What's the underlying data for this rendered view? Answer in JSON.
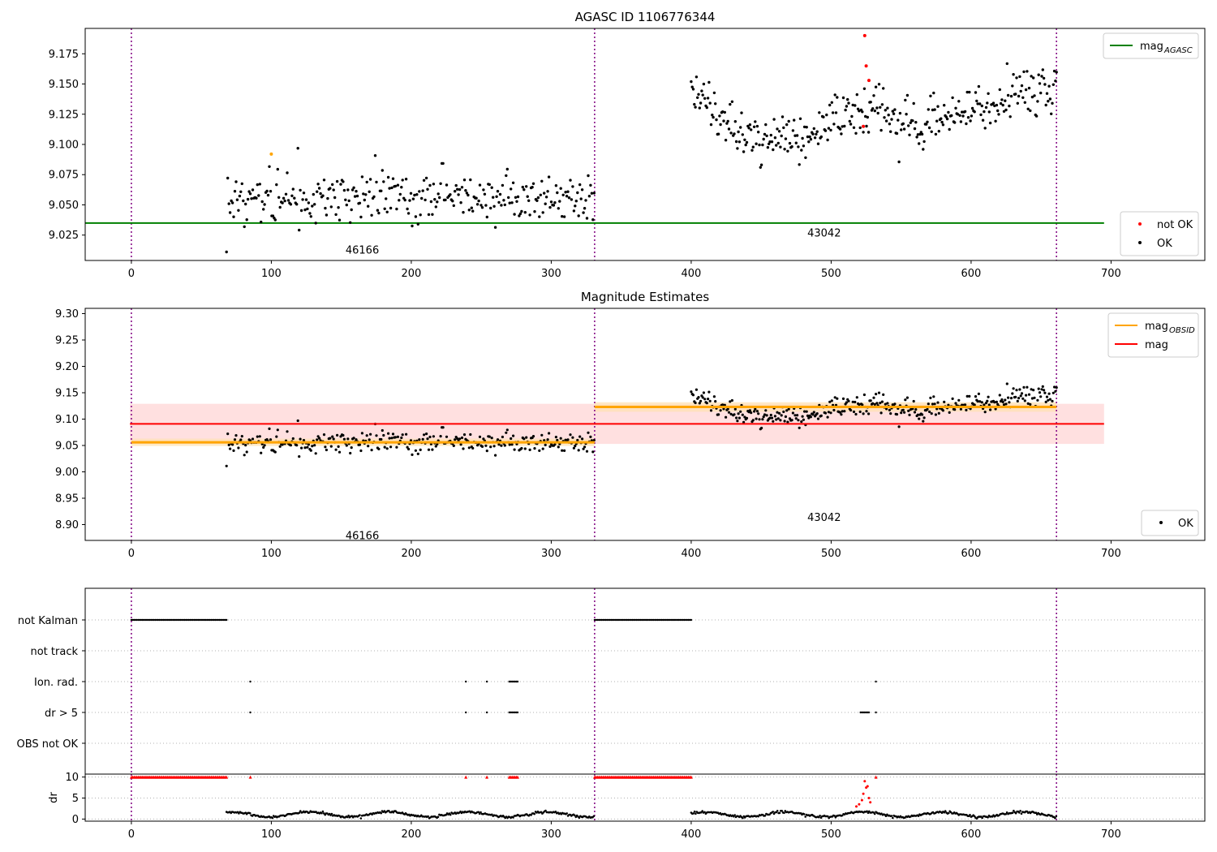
{
  "figure": {
    "title": "AGASC ID 1106776344",
    "colors": {
      "ok": "#000000",
      "not_ok": "#ff0000",
      "agasc": "#008000",
      "obsid": "#ffa500",
      "mag": "#ff0000",
      "boundary": "#800080",
      "band_red": "#ffcccc",
      "band_orange": "#ffe1b0"
    }
  },
  "chart_data": [
    {
      "id": "panel1",
      "type": "scatter",
      "title": "AGASC ID 1106776344",
      "xlabel": "",
      "ylabel": "",
      "xlim": [
        -33,
        767
      ],
      "ylim": [
        9.004,
        9.196
      ],
      "xticks": [
        0,
        100,
        200,
        300,
        400,
        500,
        600,
        700
      ],
      "yticks": [
        9.025,
        9.05,
        9.075,
        9.1,
        9.125,
        9.15,
        9.175
      ],
      "ytick_labels": [
        "9.025",
        "9.050",
        "9.075",
        "9.100",
        "9.125",
        "9.150",
        "9.175"
      ],
      "grid": false,
      "boundaries": [
        0,
        331,
        661
      ],
      "obsid_labels": [
        {
          "x": 165,
          "y": 9.013,
          "text": "46166"
        },
        {
          "x": 495,
          "y": 9.027,
          "text": "43042"
        }
      ],
      "agasc_line": {
        "y": 9.035,
        "x": [
          -33,
          695
        ]
      },
      "segments": [
        {
          "x0": 68,
          "x1": 331,
          "mean": 9.056,
          "spread": 0.011
        },
        {
          "x0": 400,
          "x1": 661,
          "trend": [
            [
              400,
              9.152
            ],
            [
              430,
              9.112
            ],
            [
              450,
              9.106
            ],
            [
              480,
              9.104
            ],
            [
              500,
              9.12
            ],
            [
              530,
              9.128
            ],
            [
              560,
              9.118
            ],
            [
              590,
              9.122
            ],
            [
              620,
              9.14
            ],
            [
              661,
              9.15
            ]
          ],
          "spread": 0.01
        }
      ],
      "not_ok_points": [
        [
          524,
          9.19
        ],
        [
          525,
          9.165
        ],
        [
          527,
          9.153
        ],
        [
          523,
          9.115
        ]
      ],
      "orange_points": [
        [
          100,
          9.092
        ]
      ],
      "legends": [
        {
          "position": "upper right",
          "entries": [
            {
              "label": "mag",
              "sub": "AGASC",
              "marker": "line",
              "color": "#008000"
            }
          ]
        },
        {
          "position": "lower right",
          "entries": [
            {
              "label": "not OK",
              "marker": "dot",
              "color": "#ff0000"
            },
            {
              "label": "OK",
              "marker": "dot",
              "color": "#000000"
            }
          ]
        }
      ]
    },
    {
      "id": "panel2",
      "type": "scatter",
      "title": "Magnitude Estimates",
      "xlabel": "",
      "ylabel": "",
      "xlim": [
        -33,
        767
      ],
      "ylim": [
        8.87,
        9.31
      ],
      "xticks": [
        0,
        100,
        200,
        300,
        400,
        500,
        600,
        700
      ],
      "yticks": [
        8.9,
        8.95,
        9.0,
        9.05,
        9.1,
        9.15,
        9.2,
        9.25,
        9.3
      ],
      "ytick_labels": [
        "8.90",
        "8.95",
        "9.00",
        "9.05",
        "9.10",
        "9.15",
        "9.20",
        "9.25",
        "9.30"
      ],
      "grid": false,
      "boundaries": [
        0,
        331,
        661
      ],
      "obsid_labels": [
        {
          "x": 165,
          "y": 8.88,
          "text": "46166"
        },
        {
          "x": 495,
          "y": 8.915,
          "text": "43042"
        }
      ],
      "mag_line": {
        "y": 9.091,
        "x": [
          -1,
          695
        ],
        "band": [
          9.053,
          9.129
        ]
      },
      "obsid_lines": [
        {
          "x0": 0,
          "x1": 331,
          "y": 9.056,
          "band": [
            9.049,
            9.063
          ]
        },
        {
          "x0": 331,
          "x1": 661,
          "y": 9.123,
          "band": [
            9.114,
            9.132
          ]
        }
      ],
      "legends": [
        {
          "position": "upper right",
          "entries": [
            {
              "label": "mag",
              "sub": "OBSID",
              "marker": "line",
              "color": "#ffa500"
            },
            {
              "label": "mag",
              "marker": "line",
              "color": "#ff0000"
            }
          ]
        },
        {
          "position": "lower right",
          "entries": [
            {
              "label": "OK",
              "marker": "dot",
              "color": "#000000"
            }
          ]
        }
      ]
    },
    {
      "id": "panel3",
      "type": "scatter",
      "title": "",
      "xlabel": "",
      "ylabel": "",
      "xlim": [
        -33,
        767
      ],
      "categories": [
        "not Kalman",
        "not track",
        "Ion. rad.",
        "dr > 5",
        "OBS not OK"
      ],
      "grid": true,
      "boundaries": [
        0,
        331,
        661
      ],
      "flags": {
        "not Kalman": [
          [
            0,
            68
          ],
          [
            331,
            400
          ]
        ],
        "not track": [],
        "Ion. rad.": [
          [
            85,
            85
          ],
          [
            239,
            239
          ],
          [
            254,
            254
          ],
          [
            270,
            276
          ],
          [
            532,
            532
          ]
        ],
        "dr > 5": [
          [
            85,
            85
          ],
          [
            239,
            239
          ],
          [
            254,
            254
          ],
          [
            270,
            276
          ],
          [
            521,
            527
          ],
          [
            532,
            532
          ]
        ],
        "OBS not OK": []
      }
    },
    {
      "id": "panel4",
      "type": "scatter",
      "title": "",
      "xlabel": "",
      "ylabel": "dr",
      "xlim": [
        -33,
        767
      ],
      "ylim": [
        -0.5,
        10.7
      ],
      "xticks": [
        0,
        100,
        200,
        300,
        400,
        500,
        600,
        700
      ],
      "yticks": [
        0,
        5,
        10
      ],
      "ytick_labels": [
        "0",
        "5",
        "10"
      ],
      "grid": true,
      "boundaries": [
        0,
        331,
        661
      ],
      "capped_ranges": [
        [
          0,
          68
        ],
        [
          85,
          85
        ],
        [
          239,
          239
        ],
        [
          254,
          254
        ],
        [
          270,
          276
        ],
        [
          331,
          400
        ],
        [
          532,
          532
        ]
      ],
      "cap_value": 10,
      "spike": [
        [
          518,
          3.0
        ],
        [
          520,
          3.5
        ],
        [
          522,
          4.5
        ],
        [
          523,
          6.0
        ],
        [
          524,
          9.0
        ],
        [
          525,
          7.5
        ],
        [
          526,
          7.8
        ],
        [
          527,
          5.0
        ],
        [
          528,
          4.0
        ]
      ]
    }
  ]
}
